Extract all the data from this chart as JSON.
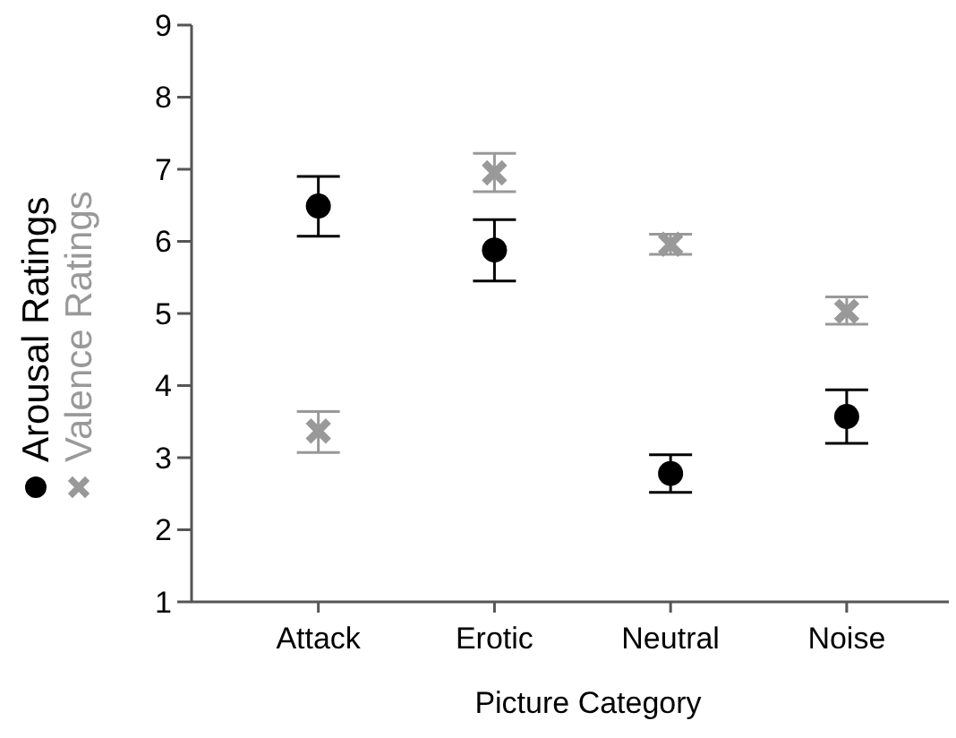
{
  "chart_data": {
    "type": "scatter",
    "xlabel": "Picture Category",
    "categories": [
      "Attack",
      "Erotic",
      "Neutral",
      "Noise"
    ],
    "ylim": [
      1,
      9
    ],
    "yticks": [
      1,
      2,
      3,
      4,
      5,
      6,
      7,
      8,
      9
    ],
    "grid": false,
    "legend": "left",
    "series": [
      {
        "name": "Arousal Ratings",
        "color": "#000000",
        "marker": "circle",
        "values": [
          6.49,
          5.88,
          2.78,
          3.57
        ],
        "errors": [
          [
            6.07,
            6.9
          ],
          [
            5.45,
            6.3
          ],
          [
            2.52,
            3.04
          ],
          [
            3.2,
            3.94
          ]
        ]
      },
      {
        "name": "Valence Ratings",
        "color": "#999999",
        "marker": "cross",
        "values": [
          3.37,
          6.95,
          5.96,
          5.03
        ],
        "errors": [
          [
            3.07,
            3.64
          ],
          [
            6.69,
            7.22
          ],
          [
            5.82,
            6.1
          ],
          [
            4.85,
            5.23
          ]
        ]
      }
    ]
  }
}
